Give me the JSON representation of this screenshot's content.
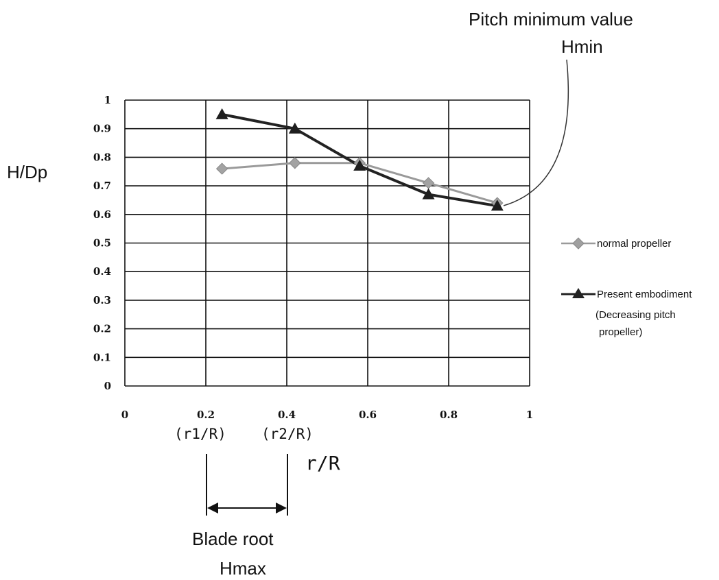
{
  "chart_data": {
    "type": "line",
    "ylabel": "H/Dp",
    "xlabel": "r/R",
    "xlim": [
      0,
      1
    ],
    "ylim": [
      0,
      1
    ],
    "x_ticks": [
      "0",
      "0.2",
      "0.4",
      "0.6",
      "0.8",
      "1"
    ],
    "y_ticks": [
      "0",
      "0.1",
      "0.2",
      "0.3",
      "0.4",
      "0.5",
      "0.6",
      "0.7",
      "0.8",
      "0.9",
      "1"
    ],
    "grid": true,
    "legend_position": "right",
    "series": [
      {
        "name": "normal propeller",
        "marker": "diamond",
        "color": "#9a9a9a",
        "x": [
          0.24,
          0.42,
          0.58,
          0.75,
          0.92
        ],
        "y": [
          0.76,
          0.78,
          0.78,
          0.71,
          0.64
        ]
      },
      {
        "name": "Present embodiment",
        "marker": "triangle",
        "color": "#222222",
        "x": [
          0.24,
          0.42,
          0.58,
          0.75,
          0.92
        ],
        "y": [
          0.95,
          0.9,
          0.77,
          0.67,
          0.63
        ]
      }
    ],
    "legend_note": [
      "(Decreasing pitch",
      "propeller)"
    ],
    "annotations": {
      "pitch_min_title": "Pitch minimum  value",
      "pitch_min_sub": "Hmin",
      "r1_label": "(r1/R)",
      "r2_label": "(r2/R)",
      "blade_root": "Blade root",
      "hmax": "Hmax"
    }
  }
}
